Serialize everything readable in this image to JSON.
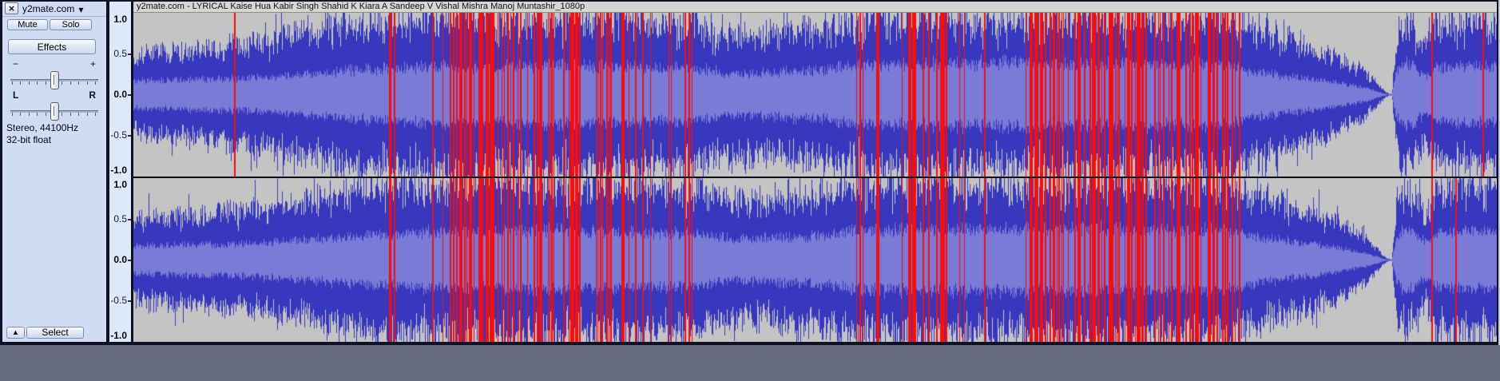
{
  "icons": {
    "close": "×",
    "dropdown": "▼",
    "collapse": "▲"
  },
  "panel": {
    "track_name": "y2mate.com",
    "mute_label": "Mute",
    "solo_label": "Solo",
    "effects_label": "Effects",
    "gain": {
      "min_label": "−",
      "max_label": "+",
      "value_percent": 50
    },
    "pan": {
      "left_label": "L",
      "right_label": "R",
      "value_percent": 50
    },
    "info_line1": "Stereo, 44100Hz",
    "info_line2": "32-bit float",
    "select_label": "Select"
  },
  "clip": {
    "title": "y2mate.com - LYRICAL Kaise Hua  Kabir Singh  Shahid K Kiara A Sandeep V  Vishal Mishra Manoj Muntashir_1080p"
  },
  "ruler": {
    "labels": [
      "1.0",
      "0.5",
      "0.0",
      "-0.5",
      "-1.0"
    ]
  },
  "colors": {
    "page_bg": "#686c80",
    "panel_bg": "#cfdcf3",
    "ruler_bg": "#dde8f8",
    "titlebar_bg": "#d5d5d5",
    "border_dark": "#101024",
    "wave_bg": "#c3c3c3",
    "wave_peak": "#3838be",
    "wave_rms": "#7a7ad7",
    "wave_clip": "#f80c0c",
    "right_sliver": "#c9cdd6"
  },
  "waveform": {
    "channels": [
      "left",
      "right"
    ],
    "envelope": [
      [
        0.0,
        0.55,
        0.17
      ],
      [
        0.036,
        0.6,
        0.19
      ],
      [
        0.074,
        0.66,
        0.2
      ],
      [
        0.1,
        0.75,
        0.22
      ],
      [
        0.13,
        0.85,
        0.26
      ],
      [
        0.16,
        0.98,
        0.3
      ],
      [
        0.2,
        1.0,
        0.34
      ],
      [
        0.3,
        1.0,
        0.37
      ],
      [
        0.41,
        0.95,
        0.33
      ],
      [
        0.44,
        0.8,
        0.26
      ],
      [
        0.47,
        0.82,
        0.28
      ],
      [
        0.5,
        0.88,
        0.3
      ],
      [
        0.53,
        1.0,
        0.37
      ],
      [
        0.65,
        1.0,
        0.4
      ],
      [
        0.8,
        1.0,
        0.38
      ],
      [
        0.82,
        0.9,
        0.3
      ],
      [
        0.845,
        0.75,
        0.24
      ],
      [
        0.88,
        0.55,
        0.16
      ],
      [
        0.905,
        0.28,
        0.08
      ],
      [
        0.918,
        0.04,
        0.01
      ],
      [
        0.921,
        0.01,
        0.004
      ],
      [
        0.923,
        0.01,
        0.004
      ],
      [
        0.926,
        0.8,
        0.3
      ],
      [
        0.935,
        1.0,
        0.4
      ],
      [
        0.948,
        0.6,
        0.22
      ],
      [
        0.955,
        0.95,
        0.34
      ],
      [
        1.0,
        0.95,
        0.36
      ]
    ],
    "clip_regions": [
      [
        0.17,
        0.212,
        0.12
      ],
      [
        0.212,
        0.259,
        0.25
      ],
      [
        0.259,
        0.318,
        0.45
      ],
      [
        0.318,
        0.411,
        0.38
      ],
      [
        0.516,
        0.593,
        0.18
      ],
      [
        0.593,
        0.658,
        0.1
      ],
      [
        0.658,
        0.814,
        0.58
      ]
    ],
    "clip_singles_left": [
      0.074,
      0.9525,
      0.99
    ],
    "clip_singles_right": [
      0.9525,
      0.97
    ]
  }
}
